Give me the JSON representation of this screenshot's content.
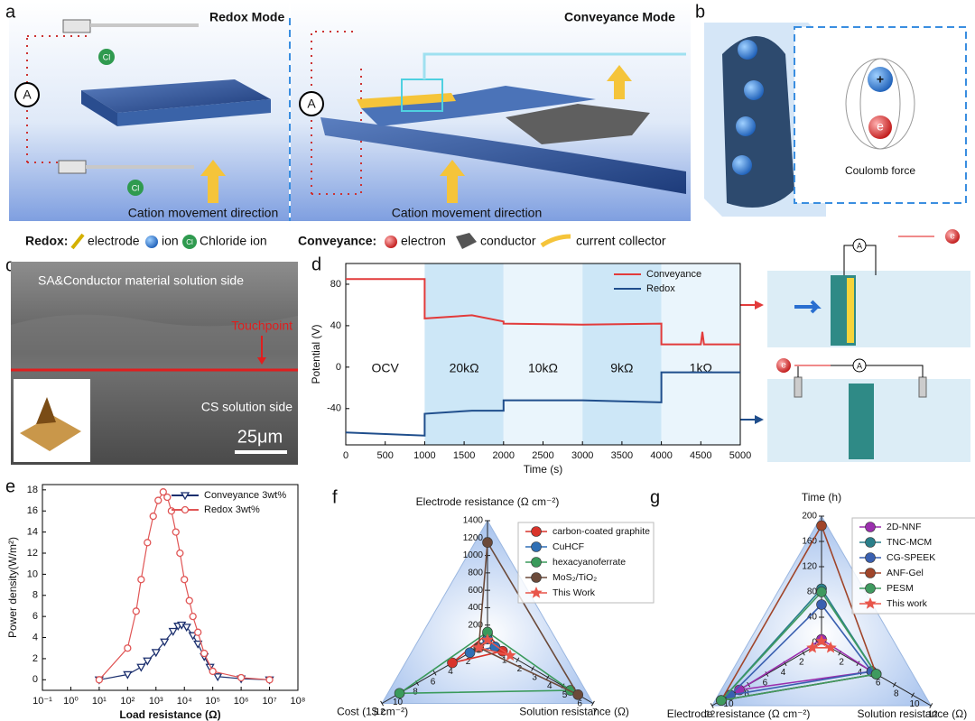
{
  "panels": {
    "a": {
      "label": "a",
      "left_title": "Redox Mode",
      "right_title": "Conveyance Mode",
      "left_caption": "Cation movement direction",
      "right_caption": "Cation movement direction",
      "meter": "A",
      "chloride": "Cl"
    },
    "b": {
      "label": "b",
      "cation": "+",
      "electron": "e",
      "caption": "Coulomb force"
    },
    "legend": {
      "redox_heading": "Redox:",
      "redox_items": [
        "electrode",
        "ion",
        "Chloride ion"
      ],
      "conveyance_heading": "Conveyance:",
      "conveyance_items": [
        "electron",
        "conductor",
        "current collector"
      ]
    },
    "c": {
      "label": "c",
      "top": "SA&Conductor material solution side",
      "marker": "Touchpoint",
      "bottom": "CS solution side",
      "scale_bar": "25μm"
    },
    "d_insets": {
      "meter": "A",
      "electron": "e"
    }
  },
  "chart_data": [
    {
      "type": "line",
      "label": "d",
      "xlabel": "Time (s)",
      "ylabel": "Potential (V)",
      "x": [
        0,
        1000,
        1000,
        1600,
        2000,
        2000,
        3000,
        4000,
        4000,
        4500,
        4520,
        4540,
        5000
      ],
      "series": [
        {
          "name": "Conveyance",
          "color": "#e23b3b",
          "values": [
            85,
            85,
            47,
            50,
            44,
            42,
            41,
            42,
            22,
            22,
            34,
            22,
            22
          ]
        },
        {
          "name": "Redox",
          "color": "#1f4e8c",
          "values": [
            -63,
            -66,
            -45,
            -42,
            -42,
            -32,
            -32,
            -34,
            -5,
            -5,
            -5,
            -5,
            -5
          ]
        }
      ],
      "regions": [
        {
          "label": "OCV",
          "x": [
            0,
            1000
          ],
          "color": "#ffffff"
        },
        {
          "label": "20kΩ",
          "x": [
            1000,
            2000
          ],
          "color": "#cde7f7"
        },
        {
          "label": "10kΩ",
          "x": [
            2000,
            3000
          ],
          "color": "#eaf5fc"
        },
        {
          "label": "9kΩ",
          "x": [
            3000,
            4000
          ],
          "color": "#cde7f7"
        },
        {
          "label": "1kΩ",
          "x": [
            4000,
            5000
          ],
          "color": "#eaf5fc"
        }
      ],
      "xlim": [
        0,
        5000
      ],
      "xticks": [
        0,
        500,
        1000,
        1500,
        2000,
        2500,
        3000,
        3500,
        4000,
        4500,
        5000
      ],
      "ylim": [
        -75,
        100
      ],
      "yticks": [
        -40,
        0,
        40,
        80
      ],
      "legend": "upper right"
    },
    {
      "type": "scatter-line",
      "label": "e",
      "xlabel": "Load resistance (Ω)",
      "ylabel": "Power density(W/m²)",
      "log_x": true,
      "series": [
        {
          "name": "Conveyance 3wt%",
          "color": "#1b2f6e",
          "marker": "triangle-down",
          "x": [
            10,
            100,
            300,
            500,
            1000,
            2000,
            4000,
            6000,
            8000,
            12000,
            20000,
            30000,
            50000,
            80000,
            150000,
            1000000,
            10000000
          ],
          "values": [
            0,
            0.5,
            1.2,
            1.8,
            2.6,
            3.6,
            4.6,
            5.1,
            5.2,
            5.0,
            4.2,
            3.4,
            2.2,
            1.2,
            0.3,
            0.1,
            0
          ]
        },
        {
          "name": "Redox 3wt%",
          "color": "#e05555",
          "marker": "circle",
          "x": [
            10,
            100,
            200,
            300,
            500,
            800,
            1200,
            1800,
            2500,
            3500,
            5000,
            7000,
            10000,
            15000,
            20000,
            30000,
            50000,
            100000,
            1000000,
            10000000
          ],
          "values": [
            0,
            3,
            6.5,
            9.5,
            13,
            15.5,
            17,
            17.8,
            17.3,
            16,
            14,
            12,
            9.5,
            7.5,
            6,
            4.5,
            2.5,
            0.8,
            0.2,
            0
          ]
        }
      ],
      "xlim": [
        0.1,
        100000000
      ],
      "xticks": [
        {
          "value": 0.1,
          "label": "10⁻¹"
        },
        {
          "value": 1,
          "label": "10⁰"
        },
        {
          "value": 10,
          "label": "10¹"
        },
        {
          "value": 100,
          "label": "10²"
        },
        {
          "value": 1000,
          "label": "10³"
        },
        {
          "value": 10000,
          "label": "10⁴"
        },
        {
          "value": 100000,
          "label": "10⁵"
        },
        {
          "value": 1000000,
          "label": "10⁶"
        },
        {
          "value": 10000000,
          "label": "10⁷"
        },
        {
          "value": 100000000,
          "label": "10⁸"
        }
      ],
      "ylim": [
        -1,
        18.5
      ],
      "yticks": [
        0,
        2,
        4,
        6,
        8,
        10,
        12,
        14,
        16,
        18
      ],
      "legend": "upper right"
    },
    {
      "type": "radar",
      "label": "f",
      "axes": [
        {
          "name": "Electrode resistance (Ω cm⁻²)",
          "lim": [
            0,
            1400
          ],
          "ticks": [
            200,
            400,
            600,
            800,
            1000,
            1200,
            1400
          ]
        },
        {
          "name": "Solution resistance (Ω)",
          "lim": [
            0,
            7
          ],
          "ticks": [
            1,
            2,
            3,
            4,
            5,
            6,
            7
          ]
        },
        {
          "name": "Cost (1$ cm⁻²)",
          "lim": [
            0,
            12
          ],
          "ticks": [
            2,
            4,
            6,
            8,
            10,
            12
          ]
        }
      ],
      "series": [
        {
          "name": "carbon-coated graphite",
          "color": "#d9342b",
          "marker": "ball",
          "values": [
            100,
            1,
            4
          ]
        },
        {
          "name": "CuHCF",
          "color": "#2f6fb5",
          "marker": "ball",
          "values": [
            40,
            0.5,
            2
          ]
        },
        {
          "name": "hexacyanoferrate",
          "color": "#3a9a5b",
          "marker": "ball",
          "values": [
            120,
            5.5,
            10
          ]
        },
        {
          "name": "MoS₂/TiO₂",
          "color": "#6b4a3a",
          "marker": "ball",
          "values": [
            1150,
            6,
            1
          ]
        },
        {
          "name": "This Work",
          "color": "#e8554a",
          "marker": "star",
          "values": [
            30,
            1.5,
            1
          ]
        }
      ]
    },
    {
      "type": "radar",
      "label": "g",
      "axes": [
        {
          "name": "Time (h)",
          "lim": [
            0,
            200
          ],
          "ticks": [
            0,
            40,
            80,
            120,
            160,
            200
          ]
        },
        {
          "name": "Solution resistance (Ω)",
          "lim": [
            0,
            12
          ],
          "ticks": [
            2,
            4,
            6,
            8,
            10,
            12
          ]
        },
        {
          "name": "Electrode resistance (Ω cm⁻²)",
          "lim": [
            0,
            12
          ],
          "ticks": [
            2,
            4,
            6,
            8,
            10,
            12
          ]
        }
      ],
      "series": [
        {
          "name": "2D-NNF",
          "color": "#9b2fae",
          "marker": "ball",
          "values": [
            5,
            5.5,
            9
          ]
        },
        {
          "name": "TNC-MCM",
          "color": "#2a7f8a",
          "marker": "ball",
          "values": [
            85,
            6,
            11
          ]
        },
        {
          "name": "CG-SPEEK",
          "color": "#3a60b0",
          "marker": "ball",
          "values": [
            60,
            5.5,
            10
          ]
        },
        {
          "name": "ANF-Gel",
          "color": "#a0452a",
          "marker": "ball",
          "values": [
            185,
            6,
            11
          ]
        },
        {
          "name": "PESM",
          "color": "#3f9a5f",
          "marker": "ball",
          "values": [
            80,
            6,
            11
          ]
        },
        {
          "name": "This work",
          "color": "#e8554a",
          "marker": "star",
          "values": [
            2,
            1,
            1
          ]
        }
      ]
    }
  ]
}
